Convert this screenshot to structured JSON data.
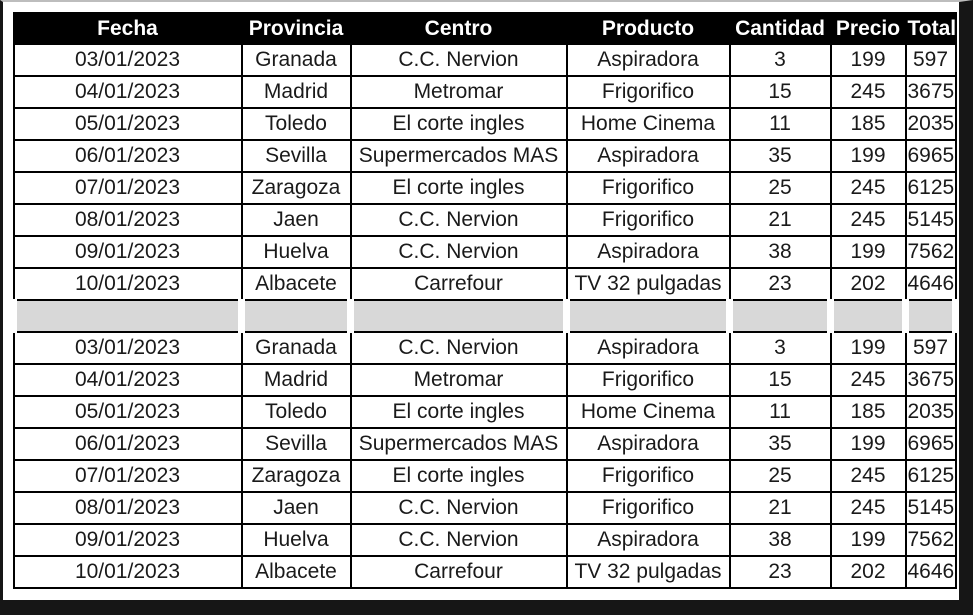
{
  "colors": {
    "frame_dark": "#161616",
    "frame_top_line": "#bdbdbd",
    "header_bg": "#000000",
    "header_text": "#ffffff",
    "separator_bg": "#d8d8d8",
    "border": "#000000",
    "text": "#1a1a1a"
  },
  "table": {
    "headers": [
      "Fecha",
      "Provincia",
      "Centro",
      "Producto",
      "Cantidad",
      "Precio",
      "Total"
    ],
    "groups": [
      [
        [
          "03/01/2023",
          "Granada",
          "C.C. Nervion",
          "Aspiradora",
          3,
          199,
          597
        ],
        [
          "04/01/2023",
          "Madrid",
          "Metromar",
          "Frigorifico",
          15,
          245,
          3675
        ],
        [
          "05/01/2023",
          "Toledo",
          "El corte ingles",
          "Home Cinema",
          11,
          185,
          2035
        ],
        [
          "06/01/2023",
          "Sevilla",
          "Supermercados MAS",
          "Aspiradora",
          35,
          199,
          6965
        ],
        [
          "07/01/2023",
          "Zaragoza",
          "El corte ingles",
          "Frigorifico",
          25,
          245,
          6125
        ],
        [
          "08/01/2023",
          "Jaen",
          "C.C. Nervion",
          "Frigorifico",
          21,
          245,
          5145
        ],
        [
          "09/01/2023",
          "Huelva",
          "C.C. Nervion",
          "Aspiradora",
          38,
          199,
          7562
        ],
        [
          "10/01/2023",
          "Albacete",
          "Carrefour",
          "TV 32 pulgadas",
          23,
          202,
          4646
        ]
      ],
      [
        [
          "03/01/2023",
          "Granada",
          "C.C. Nervion",
          "Aspiradora",
          3,
          199,
          597
        ],
        [
          "04/01/2023",
          "Madrid",
          "Metromar",
          "Frigorifico",
          15,
          245,
          3675
        ],
        [
          "05/01/2023",
          "Toledo",
          "El corte ingles",
          "Home Cinema",
          11,
          185,
          2035
        ],
        [
          "06/01/2023",
          "Sevilla",
          "Supermercados MAS",
          "Aspiradora",
          35,
          199,
          6965
        ],
        [
          "07/01/2023",
          "Zaragoza",
          "El corte ingles",
          "Frigorifico",
          25,
          245,
          6125
        ],
        [
          "08/01/2023",
          "Jaen",
          "C.C. Nervion",
          "Frigorifico",
          21,
          245,
          5145
        ],
        [
          "09/01/2023",
          "Huelva",
          "C.C. Nervion",
          "Aspiradora",
          38,
          199,
          7562
        ],
        [
          "10/01/2023",
          "Albacete",
          "Carrefour",
          "TV 32 pulgadas",
          23,
          202,
          4646
        ]
      ]
    ],
    "separator_row_text": ""
  }
}
